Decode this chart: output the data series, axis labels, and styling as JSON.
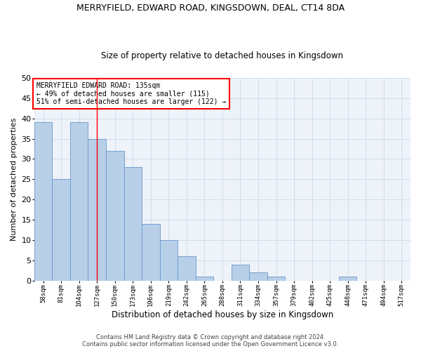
{
  "title": "MERRYFIELD, EDWARD ROAD, KINGSDOWN, DEAL, CT14 8DA",
  "subtitle": "Size of property relative to detached houses in Kingsdown",
  "xlabel": "Distribution of detached houses by size in Kingsdown",
  "ylabel": "Number of detached properties",
  "categories": [
    "58sqm",
    "81sqm",
    "104sqm",
    "127sqm",
    "150sqm",
    "173sqm",
    "196sqm",
    "219sqm",
    "242sqm",
    "265sqm",
    "288sqm",
    "311sqm",
    "334sqm",
    "357sqm",
    "379sqm",
    "402sqm",
    "425sqm",
    "448sqm",
    "471sqm",
    "494sqm",
    "517sqm"
  ],
  "values": [
    39,
    25,
    39,
    35,
    32,
    28,
    14,
    10,
    6,
    1,
    0,
    4,
    2,
    1,
    0,
    0,
    0,
    1,
    0,
    0,
    0
  ],
  "bar_color": "#b8cfe8",
  "bar_edge_color": "#6699cc",
  "bg_color": "#eef2f9",
  "vline_x": 3,
  "vline_color": "red",
  "annotation_line1": "MERRYFIELD EDWARD ROAD: 135sqm",
  "annotation_line2": "← 49% of detached houses are smaller (115)",
  "annotation_line3": "51% of semi-detached houses are larger (122) →",
  "ylim": [
    0,
    50
  ],
  "yticks": [
    0,
    5,
    10,
    15,
    20,
    25,
    30,
    35,
    40,
    45,
    50
  ],
  "footer_line1": "Contains HM Land Registry data © Crown copyright and database right 2024.",
  "footer_line2": "Contains public sector information licensed under the Open Government Licence v3.0."
}
